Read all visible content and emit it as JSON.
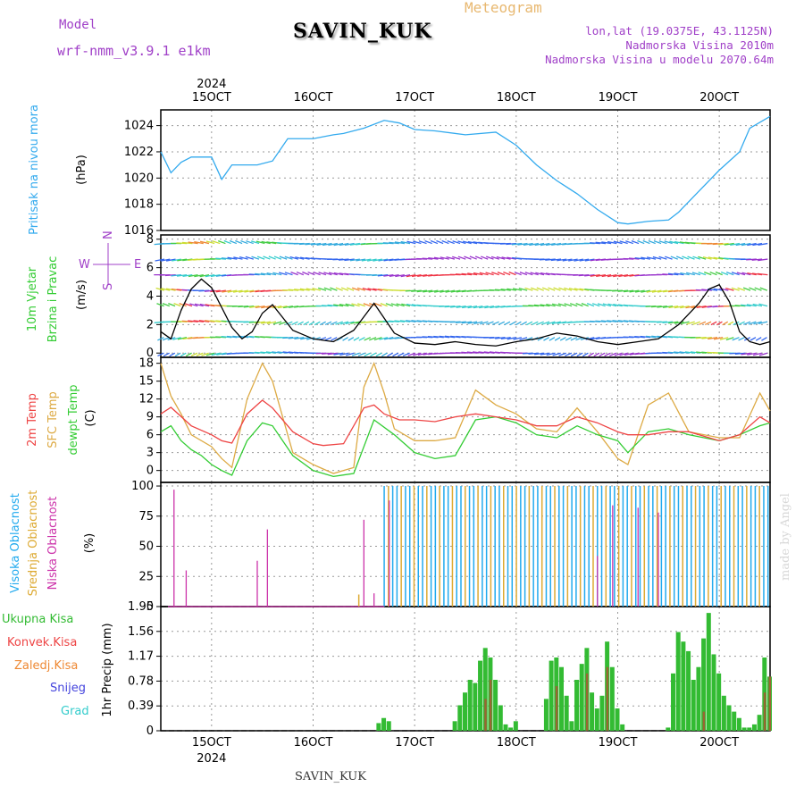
{
  "header": {
    "model_label": "Model",
    "model_name": "wrf-nmm_v3.9.1 e1km",
    "station": "SAVIN_KUK",
    "meteogram": "Meteogram",
    "lonlat": "lon,lat (19.0375E, 43.1125N)",
    "altitude": "Nadmorska Visina 2010m",
    "model_altitude": "Nadmorska Visina u modelu 2070.64m"
  },
  "footer": "SAVIN_KUK",
  "credit": "made by Angel",
  "time_axis": {
    "year": "2024",
    "dates": [
      "15OCT",
      "16OCT",
      "17OCT",
      "18OCT",
      "19OCT",
      "20OCT"
    ],
    "x_range_days": [
      14.5,
      20.5
    ]
  },
  "compass_labels": {
    "n": "N",
    "s": "S",
    "e": "E",
    "w": "W"
  },
  "colors": {
    "pressure": "#33aaee",
    "t2m": "#ee4444",
    "tsfc": "#ddaa44",
    "dewpt": "#33cc33",
    "high_cloud": "#22aaee",
    "mid_cloud": "#ddaa33",
    "low_cloud": "#cc33aa",
    "total_precip": "#33bb33",
    "conv_precip": "#ee4444",
    "frz_precip": "#ee8833",
    "snow": "#4444dd",
    "hail": "#33cccc"
  },
  "chart_data": [
    {
      "type": "line",
      "id": "pressure",
      "ylabel": [
        "Pritisak na nivou mora",
        "(hPa)"
      ],
      "ylim": [
        1016,
        1025.2
      ],
      "yticks": [
        1016,
        1018,
        1020,
        1022,
        1024
      ],
      "series": [
        {
          "x": [
            14.5,
            14.6,
            14.7,
            14.8,
            15.0,
            15.1,
            15.2,
            15.3,
            15.45,
            15.6,
            15.75,
            15.85,
            16.0,
            16.2,
            16.3,
            16.5,
            16.7,
            16.85,
            17.0,
            17.2,
            17.5,
            17.8,
            18.0,
            18.2,
            18.4,
            18.6,
            18.8,
            19.0,
            19.1,
            19.3,
            19.5,
            19.6,
            19.8,
            20.0,
            20.2,
            20.3,
            20.5
          ],
          "y": [
            1022,
            1020.4,
            1021.2,
            1021.6,
            1021.6,
            1019.9,
            1021.0,
            1021.0,
            1021.0,
            1021.3,
            1023.0,
            1023.0,
            1023.0,
            1023.3,
            1023.4,
            1023.8,
            1024.4,
            1024.2,
            1023.7,
            1023.6,
            1023.3,
            1023.5,
            1022.5,
            1021.0,
            1019.8,
            1018.8,
            1017.6,
            1016.6,
            1016.5,
            1016.7,
            1016.8,
            1017.4,
            1019.0,
            1020.6,
            1022.0,
            1023.8,
            1024.7
          ]
        }
      ]
    },
    {
      "type": "line",
      "id": "wind",
      "ylabel": [
        "10m Vjetar",
        "Brzina i Pravac",
        "(m/s)"
      ],
      "ylim": [
        -0.3,
        8.3
      ],
      "yticks": [
        0,
        2,
        4,
        6,
        8
      ],
      "series": [
        {
          "x": [
            14.5,
            14.6,
            14.7,
            14.8,
            14.9,
            15.0,
            15.1,
            15.2,
            15.3,
            15.4,
            15.5,
            15.6,
            15.7,
            15.8,
            16.0,
            16.2,
            16.4,
            16.6,
            16.8,
            17.0,
            17.2,
            17.4,
            17.6,
            17.8,
            18.0,
            18.2,
            18.4,
            18.6,
            18.8,
            19.0,
            19.2,
            19.4,
            19.6,
            19.8,
            19.9,
            20.0,
            20.1,
            20.2,
            20.3,
            20.4,
            20.5
          ],
          "y": [
            1.5,
            1.0,
            3.0,
            4.5,
            5.2,
            4.6,
            3.2,
            1.8,
            1.0,
            1.5,
            2.8,
            3.4,
            2.5,
            1.6,
            1.0,
            0.8,
            1.6,
            3.5,
            1.4,
            0.7,
            0.6,
            0.8,
            0.6,
            0.5,
            0.8,
            1.0,
            1.4,
            1.2,
            0.8,
            0.6,
            0.8,
            1.0,
            2.0,
            3.5,
            4.5,
            4.8,
            3.6,
            1.5,
            0.8,
            0.6,
            0.8
          ]
        }
      ]
    },
    {
      "type": "line",
      "id": "temperature",
      "ylabel": [
        "2m Temp",
        "SFC Temp",
        "dewpt Temp",
        "(C)"
      ],
      "ylim": [
        -2,
        19
      ],
      "yticks": [
        0,
        3,
        6,
        9,
        12,
        15,
        18
      ],
      "series": [
        {
          "name": "2m Temp",
          "x": [
            14.5,
            14.6,
            14.8,
            15.0,
            15.1,
            15.2,
            15.35,
            15.5,
            15.6,
            15.8,
            16.0,
            16.1,
            16.3,
            16.5,
            16.6,
            16.7,
            16.85,
            17.0,
            17.2,
            17.4,
            17.6,
            17.8,
            18.0,
            18.2,
            18.4,
            18.6,
            18.8,
            19.0,
            19.1,
            19.3,
            19.5,
            19.7,
            20.0,
            20.2,
            20.4,
            20.5
          ],
          "y": [
            9.5,
            10.6,
            7.5,
            6.0,
            5.0,
            4.6,
            9.5,
            11.8,
            10.5,
            6.5,
            4.5,
            4.2,
            4.5,
            10.5,
            11.0,
            9.5,
            8.5,
            8.5,
            8.2,
            9.0,
            9.5,
            9.0,
            8.5,
            7.5,
            7.5,
            9.0,
            8.0,
            6.5,
            6.0,
            6.0,
            6.5,
            6.5,
            5.0,
            6.0,
            9.0,
            8.0
          ]
        },
        {
          "name": "SFC Temp",
          "x": [
            14.5,
            14.6,
            14.7,
            14.8,
            15.0,
            15.1,
            15.2,
            15.35,
            15.5,
            15.6,
            15.7,
            15.8,
            16.0,
            16.2,
            16.4,
            16.5,
            16.6,
            16.7,
            16.8,
            17.0,
            17.2,
            17.4,
            17.6,
            17.8,
            18.0,
            18.2,
            18.4,
            18.6,
            18.8,
            19.0,
            19.1,
            19.3,
            19.5,
            19.7,
            20.0,
            20.2,
            20.4,
            20.5
          ],
          "y": [
            18,
            12.5,
            9.5,
            6.0,
            4.0,
            2.0,
            0.5,
            12,
            18,
            15,
            9,
            3,
            1,
            -0.5,
            0.5,
            14,
            18,
            13,
            7,
            5.0,
            5.0,
            5.5,
            13.5,
            11,
            9.5,
            7,
            6.5,
            10.5,
            6.5,
            2,
            1.0,
            11,
            13,
            6.5,
            5.5,
            5.5,
            13,
            10
          ]
        },
        {
          "name": "dewpt Temp",
          "x": [
            14.5,
            14.6,
            14.7,
            14.8,
            14.9,
            15.0,
            15.1,
            15.2,
            15.35,
            15.5,
            15.6,
            15.8,
            16.0,
            16.2,
            16.4,
            16.6,
            16.8,
            17.0,
            17.2,
            17.4,
            17.6,
            17.8,
            18.0,
            18.2,
            18.4,
            18.6,
            18.8,
            19.0,
            19.1,
            19.3,
            19.5,
            19.7,
            20.0,
            20.2,
            20.4,
            20.5
          ],
          "y": [
            6.5,
            7.5,
            5.0,
            3.5,
            2.5,
            1.0,
            0.0,
            -0.8,
            5.0,
            8.0,
            7.5,
            2.5,
            0.0,
            -1.0,
            -0.5,
            8.5,
            6.0,
            3.0,
            2.0,
            2.5,
            8.5,
            9.0,
            8.0,
            6.0,
            5.5,
            7.5,
            6.0,
            5.0,
            3.0,
            6.5,
            7.0,
            6.0,
            5.0,
            6.0,
            7.5,
            8.0
          ]
        }
      ]
    },
    {
      "type": "bar",
      "id": "cloud",
      "ylabel": [
        "Visoka Oblacnost",
        "Srednja Oblacnost",
        "Niska Oblacnost",
        "(%)"
      ],
      "ylim": [
        0,
        103
      ],
      "yticks": [
        0,
        25,
        50,
        75,
        100
      ],
      "series": [
        {
          "name": "Niska Oblacnost",
          "points": [
            [
              14.63,
              97
            ],
            [
              14.75,
              30
            ],
            [
              15.45,
              38
            ],
            [
              15.55,
              64
            ],
            [
              16.5,
              72
            ],
            [
              16.6,
              11
            ],
            [
              16.75,
              88
            ],
            [
              18.8,
              42
            ],
            [
              18.95,
              84
            ],
            [
              19.2,
              82
            ],
            [
              19.4,
              78
            ]
          ]
        },
        {
          "name": "Srednja Oblacnost",
          "points": [
            [
              16.45,
              10
            ]
          ]
        },
        {
          "name": "Visoka Oblacnost",
          "points": []
        }
      ]
    },
    {
      "type": "bar",
      "id": "precip",
      "ylabel": [
        "1hr Precip (mm)"
      ],
      "legend": [
        "Ukupna Kisa",
        "Konvek.Kisa",
        "Zaledj.Kisa",
        "Snijeg",
        "Grad"
      ],
      "ylim": [
        0,
        1.95
      ],
      "yticks": [
        0,
        0.39,
        0.78,
        1.17,
        1.56,
        1.95
      ],
      "series": [
        {
          "name": "Ukupna Kisa",
          "x": [
            16.65,
            16.7,
            16.75,
            17.4,
            17.45,
            17.5,
            17.55,
            17.6,
            17.65,
            17.7,
            17.75,
            17.8,
            17.85,
            17.9,
            17.95,
            18.0,
            18.3,
            18.35,
            18.4,
            18.45,
            18.5,
            18.55,
            18.6,
            18.65,
            18.7,
            18.75,
            18.8,
            18.85,
            18.9,
            18.95,
            19.0,
            19.05,
            19.5,
            19.55,
            19.6,
            19.65,
            19.7,
            19.75,
            19.8,
            19.85,
            19.9,
            19.95,
            20.0,
            20.05,
            20.1,
            20.15,
            20.2,
            20.25,
            20.3,
            20.35,
            20.4,
            20.45,
            20.5
          ],
          "y": [
            0.12,
            0.2,
            0.15,
            0.15,
            0.4,
            0.6,
            0.8,
            0.75,
            1.1,
            1.3,
            1.15,
            0.8,
            0.4,
            0.1,
            0.05,
            0.15,
            0.5,
            1.1,
            1.15,
            1.0,
            0.55,
            0.15,
            0.8,
            1.05,
            1.3,
            0.6,
            0.35,
            0.55,
            1.4,
            1.0,
            0.35,
            0.1,
            0.05,
            0.9,
            1.55,
            1.4,
            1.25,
            0.8,
            1.0,
            1.45,
            1.85,
            1.2,
            0.9,
            0.55,
            0.4,
            0.3,
            0.2,
            0.05,
            0.05,
            0.1,
            0.25,
            1.15,
            0.85
          ]
        },
        {
          "name": "Konvek.Kisa",
          "x": [
            17.7,
            17.75,
            18.4,
            18.7,
            18.9,
            19.85,
            20.45,
            20.5
          ],
          "y": [
            0.5,
            0.8,
            0.7,
            0.9,
            1.0,
            0.3,
            0.6,
            0.85
          ]
        }
      ]
    }
  ]
}
